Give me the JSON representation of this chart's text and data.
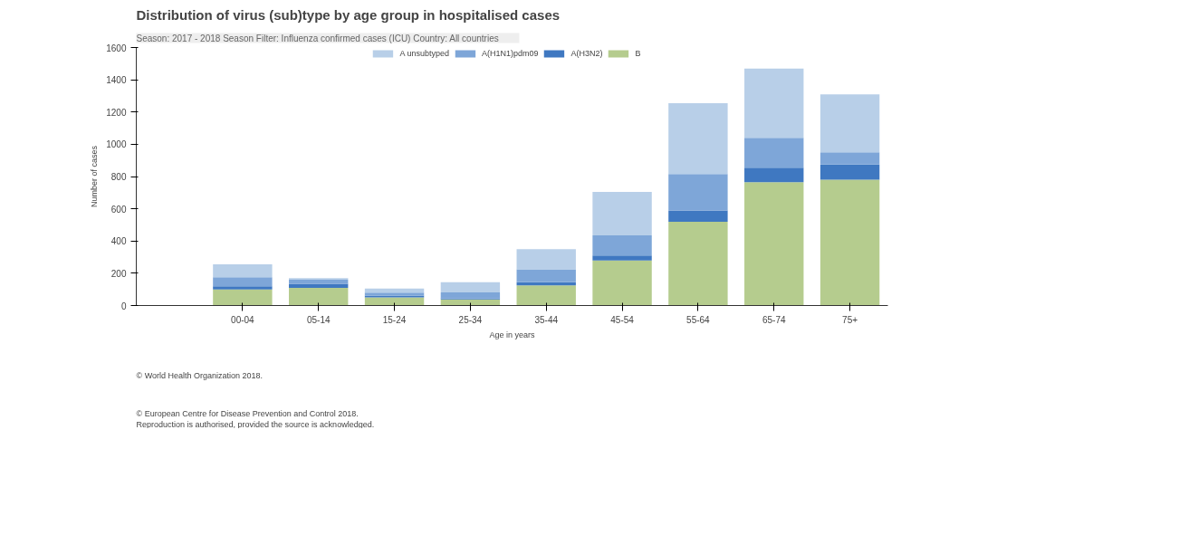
{
  "chart_data": {
    "type": "bar",
    "stacked": true,
    "title": "Distribution of virus (sub)type by age group in hospitalised cases",
    "subtitle": "Season: 2017 - 2018 Season     Filter: Influenza confirmed cases (ICU)     Country: All countries",
    "xlabel": "Age in years",
    "ylabel": "Number of cases",
    "categories": [
      "00-04",
      "05-14",
      "15-24",
      "25-34",
      "35-44",
      "45-54",
      "55-64",
      "65-74",
      "75+"
    ],
    "series": [
      {
        "name": "B",
        "color": "#b5cc8e",
        "values": [
          100,
          110,
          50,
          38,
          125,
          280,
          520,
          765,
          780
        ]
      },
      {
        "name": "A(H3N2)",
        "color": "#3f78c1",
        "values": [
          20,
          25,
          10,
          7,
          20,
          30,
          70,
          90,
          95
        ]
      },
      {
        "name": "A(H1N1)pdm09",
        "color": "#7ea6d8",
        "values": [
          55,
          25,
          20,
          37,
          80,
          125,
          225,
          185,
          75
        ]
      },
      {
        "name": "A unsubtyped",
        "color": "#b8cfe8",
        "values": [
          80,
          10,
          25,
          62,
          125,
          270,
          440,
          430,
          360
        ]
      }
    ],
    "ylim": [
      0,
      1600
    ],
    "yticks": [
      0,
      200,
      400,
      600,
      800,
      1000,
      1200,
      1400,
      1600
    ],
    "grid": false,
    "legend": "top",
    "annotations": [
      "© World Health Organization 2018.",
      "© European Centre for Disease Prevention and Control 2018.",
      "Reproduction is authorised, provided the source is acknowledged."
    ]
  }
}
